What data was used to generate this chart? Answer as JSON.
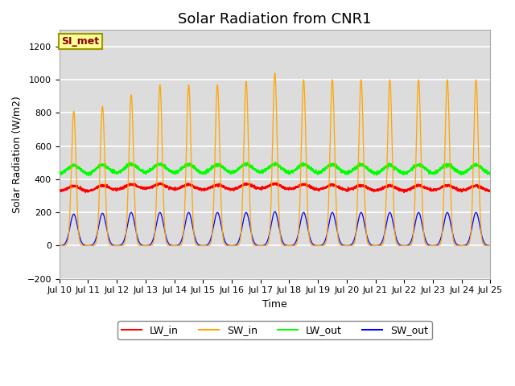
{
  "title": "Solar Radiation from CNR1",
  "xlabel": "Time",
  "ylabel": "Solar Radiation (W/m2)",
  "ylim": [
    -200,
    1300
  ],
  "yticks": [
    -200,
    0,
    200,
    400,
    600,
    800,
    1000,
    1200
  ],
  "xlim_days": [
    0,
    15
  ],
  "x_tick_labels": [
    "Jul 10",
    "Jul 11",
    "Jul 12",
    "Jul 13",
    "Jul 14",
    "Jul 15",
    "Jul 16",
    "Jul 17",
    "Jul 18",
    "Jul 19",
    "Jul 20",
    "Jul 21",
    "Jul 22",
    "Jul 23",
    "Jul 24",
    "Jul 25"
  ],
  "annotation_text": "SI_met",
  "annotation_color": "#8B0000",
  "annotation_bg": "#FFFF99",
  "annotation_border": "#999900",
  "lines": {
    "LW_in": {
      "color": "#FF0000",
      "label": "LW_in"
    },
    "SW_in": {
      "color": "#FFA500",
      "label": "SW_in"
    },
    "LW_out": {
      "color": "#00FF00",
      "label": "LW_out"
    },
    "SW_out": {
      "color": "#0000FF",
      "label": "SW_out"
    }
  },
  "background_color": "#DCDCDC",
  "grid_color": "#FFFFFF",
  "points_per_day": 288,
  "n_days": 15,
  "SW_in_peaks": [
    810,
    840,
    910,
    970,
    970,
    970,
    990,
    1040,
    1000,
    1000,
    1000,
    1000,
    1000,
    1000,
    1000
  ],
  "SW_out_peaks": [
    190,
    195,
    200,
    200,
    200,
    200,
    200,
    205,
    200,
    200,
    200,
    200,
    200,
    200,
    200
  ],
  "LW_in_base": 330,
  "LW_out_base": 430,
  "title_fontsize": 13,
  "axis_fontsize": 9,
  "tick_fontsize": 8,
  "legend_fontsize": 9
}
